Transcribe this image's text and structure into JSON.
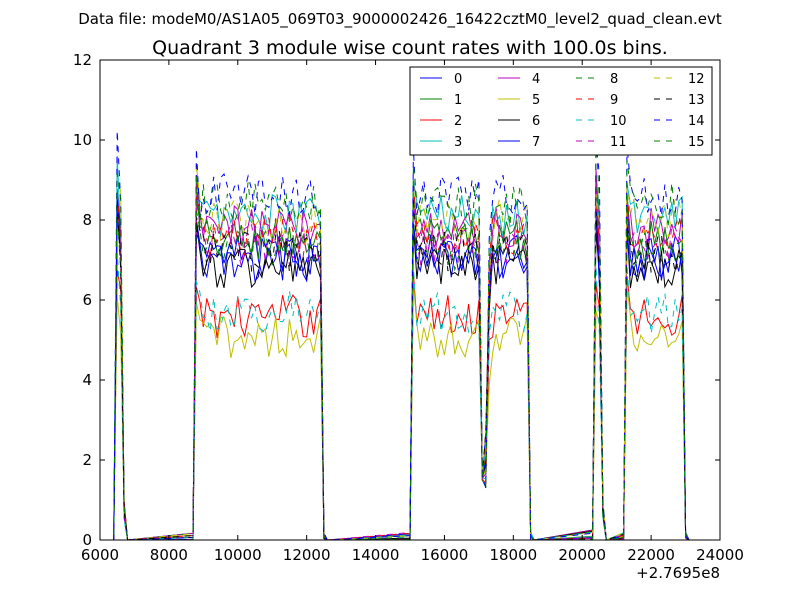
{
  "chart_data": {
    "type": "line",
    "suptitle": "Data file: modeM0/AS1A05_069T03_9000002426_16422cztM0_level2_quad_clean.evt",
    "title": "Quadrant 3 module wise count rates with 100.0s bins.",
    "xlabel": "",
    "ylabel": "",
    "x_offset_label": "+2.7695e8",
    "xlim": [
      6000,
      24000
    ],
    "ylim": [
      0,
      12
    ],
    "x_ticks": [
      6000,
      8000,
      10000,
      12000,
      14000,
      16000,
      18000,
      20000,
      22000,
      24000
    ],
    "y_ticks": [
      0,
      2,
      4,
      6,
      8,
      10,
      12
    ],
    "grid": false,
    "legend_position": "top-right",
    "segments": [
      {
        "start": 6500,
        "end": 6700
      },
      {
        "start": 8800,
        "end": 12400
      },
      {
        "start": 15100,
        "end": 18400
      },
      {
        "start": 20400,
        "end": 20600
      },
      {
        "start": 21300,
        "end": 22900
      }
    ],
    "series": [
      {
        "name": "0",
        "color": "#0000ff",
        "dash": "solid",
        "level": 7.1
      },
      {
        "name": "1",
        "color": "#008000",
        "dash": "solid",
        "level": 7.5
      },
      {
        "name": "2",
        "color": "#ff0000",
        "dash": "solid",
        "level": 5.6
      },
      {
        "name": "3",
        "color": "#00bfbf",
        "dash": "solid",
        "level": 8.1
      },
      {
        "name": "4",
        "color": "#bf00bf",
        "dash": "solid",
        "level": 7.8
      },
      {
        "name": "5",
        "color": "#bfbf00",
        "dash": "solid",
        "level": 5.1
      },
      {
        "name": "6",
        "color": "#000000",
        "dash": "solid",
        "level": 6.8
      },
      {
        "name": "7",
        "color": "#0000ff",
        "dash": "solid",
        "level": 7.0
      },
      {
        "name": "8",
        "color": "#008000",
        "dash": "dashed",
        "level": 7.3
      },
      {
        "name": "9",
        "color": "#ff0000",
        "dash": "dashed",
        "level": 7.6
      },
      {
        "name": "10",
        "color": "#00bfbf",
        "dash": "dashed",
        "level": 5.7
      },
      {
        "name": "11",
        "color": "#bf00bf",
        "dash": "dashed",
        "level": 7.4
      },
      {
        "name": "12",
        "color": "#bfbf00",
        "dash": "dashed",
        "level": 8.0
      },
      {
        "name": "13",
        "color": "#000000",
        "dash": "dashed",
        "level": 7.2
      },
      {
        "name": "14",
        "color": "#0000ff",
        "dash": "dashed",
        "level": 8.6
      },
      {
        "name": "15",
        "color": "#008000",
        "dash": "dashed",
        "level": 8.4
      }
    ]
  }
}
